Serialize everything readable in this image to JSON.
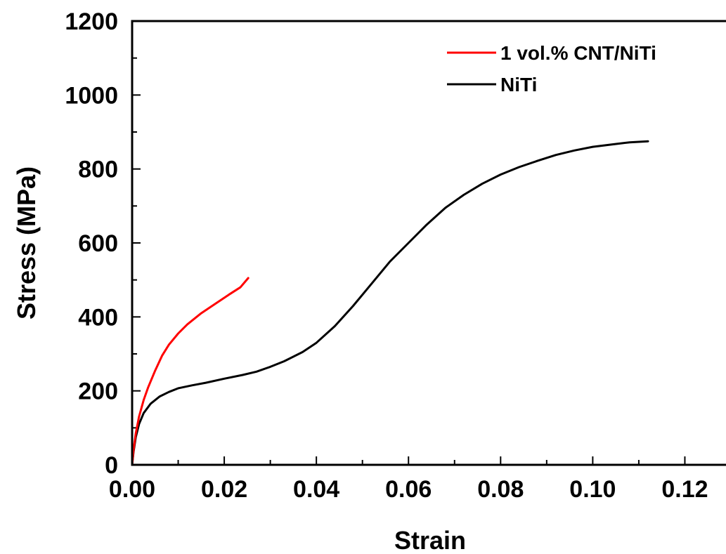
{
  "chart_data": {
    "type": "line",
    "xlabel": "Strain",
    "ylabel": "Stress (MPa)",
    "xlim": [
      0,
      0.13
    ],
    "ylim": [
      0,
      1200
    ],
    "x_ticks": [
      "0.00",
      "0.02",
      "0.04",
      "0.06",
      "0.08",
      "0.10",
      "0.12"
    ],
    "y_ticks": [
      "0",
      "200",
      "400",
      "600",
      "800",
      "1000",
      "1200"
    ],
    "legend_position": "top-right",
    "series": [
      {
        "name": "1 vol.% CNT/NiTi",
        "color": "#ff0000",
        "points": [
          [
            0.0,
            0
          ],
          [
            0.0003,
            40
          ],
          [
            0.0008,
            85
          ],
          [
            0.0015,
            130
          ],
          [
            0.0025,
            175
          ],
          [
            0.0035,
            210
          ],
          [
            0.005,
            255
          ],
          [
            0.0065,
            295
          ],
          [
            0.008,
            325
          ],
          [
            0.01,
            355
          ],
          [
            0.012,
            380
          ],
          [
            0.015,
            410
          ],
          [
            0.018,
            435
          ],
          [
            0.021,
            460
          ],
          [
            0.0235,
            480
          ],
          [
            0.0252,
            505
          ]
        ]
      },
      {
        "name": "NiTi",
        "color": "#000000",
        "points": [
          [
            0.0,
            0
          ],
          [
            0.0003,
            35
          ],
          [
            0.0008,
            75
          ],
          [
            0.0015,
            110
          ],
          [
            0.0025,
            140
          ],
          [
            0.004,
            165
          ],
          [
            0.006,
            185
          ],
          [
            0.008,
            197
          ],
          [
            0.01,
            207
          ],
          [
            0.013,
            215
          ],
          [
            0.016,
            222
          ],
          [
            0.02,
            233
          ],
          [
            0.024,
            243
          ],
          [
            0.027,
            252
          ],
          [
            0.03,
            265
          ],
          [
            0.033,
            280
          ],
          [
            0.037,
            305
          ],
          [
            0.04,
            330
          ],
          [
            0.044,
            375
          ],
          [
            0.048,
            430
          ],
          [
            0.052,
            490
          ],
          [
            0.056,
            550
          ],
          [
            0.06,
            600
          ],
          [
            0.064,
            650
          ],
          [
            0.068,
            695
          ],
          [
            0.072,
            730
          ],
          [
            0.076,
            760
          ],
          [
            0.08,
            785
          ],
          [
            0.084,
            805
          ],
          [
            0.088,
            822
          ],
          [
            0.092,
            838
          ],
          [
            0.096,
            850
          ],
          [
            0.1,
            860
          ],
          [
            0.104,
            866
          ],
          [
            0.108,
            872
          ],
          [
            0.112,
            875
          ]
        ]
      }
    ]
  }
}
